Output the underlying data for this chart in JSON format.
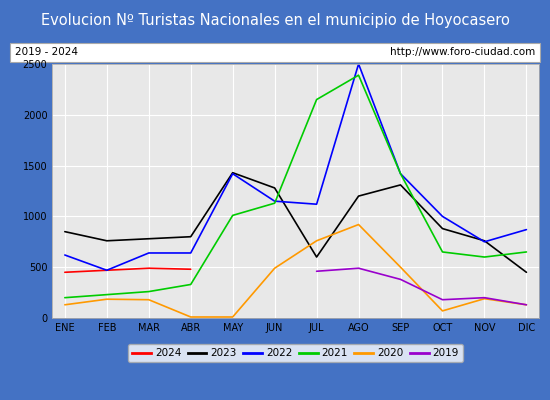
{
  "title": "Evolucion Nº Turistas Nacionales en el municipio de Hoyocasero",
  "subtitle_left": "2019 - 2024",
  "subtitle_right": "http://www.foro-ciudad.com",
  "months": [
    "ENE",
    "FEB",
    "MAR",
    "ABR",
    "MAY",
    "JUN",
    "JUL",
    "AGO",
    "SEP",
    "OCT",
    "NOV",
    "DIC"
  ],
  "series": {
    "2024": [
      450,
      470,
      490,
      480,
      null,
      null,
      null,
      null,
      null,
      null,
      null,
      null
    ],
    "2023": [
      850,
      760,
      780,
      800,
      1430,
      1280,
      600,
      1200,
      1310,
      880,
      760,
      450
    ],
    "2022": [
      620,
      470,
      640,
      640,
      1420,
      1150,
      1120,
      2500,
      1420,
      1000,
      750,
      870
    ],
    "2021": [
      200,
      230,
      260,
      330,
      1010,
      1130,
      2150,
      2390,
      1420,
      650,
      600,
      650
    ],
    "2020": [
      130,
      185,
      180,
      10,
      10,
      490,
      760,
      920,
      500,
      70,
      190,
      130
    ],
    "2019": [
      null,
      null,
      null,
      null,
      null,
      null,
      460,
      490,
      380,
      180,
      200,
      130
    ]
  },
  "colors": {
    "2024": "#ff0000",
    "2023": "#000000",
    "2022": "#0000ff",
    "2021": "#00cc00",
    "2020": "#ff9900",
    "2019": "#9900cc"
  },
  "ylim": [
    0,
    2500
  ],
  "yticks": [
    0,
    500,
    1000,
    1500,
    2000,
    2500
  ],
  "title_bg_color": "#4472c4",
  "title_text_color": "#ffffff",
  "plot_bg_color": "#e8e8e8",
  "grid_color": "#ffffff",
  "border_color": "#aaaaaa",
  "title_fontsize": 10.5,
  "subtitle_fontsize": 7.5,
  "axis_fontsize": 7,
  "legend_fontsize": 7.5
}
